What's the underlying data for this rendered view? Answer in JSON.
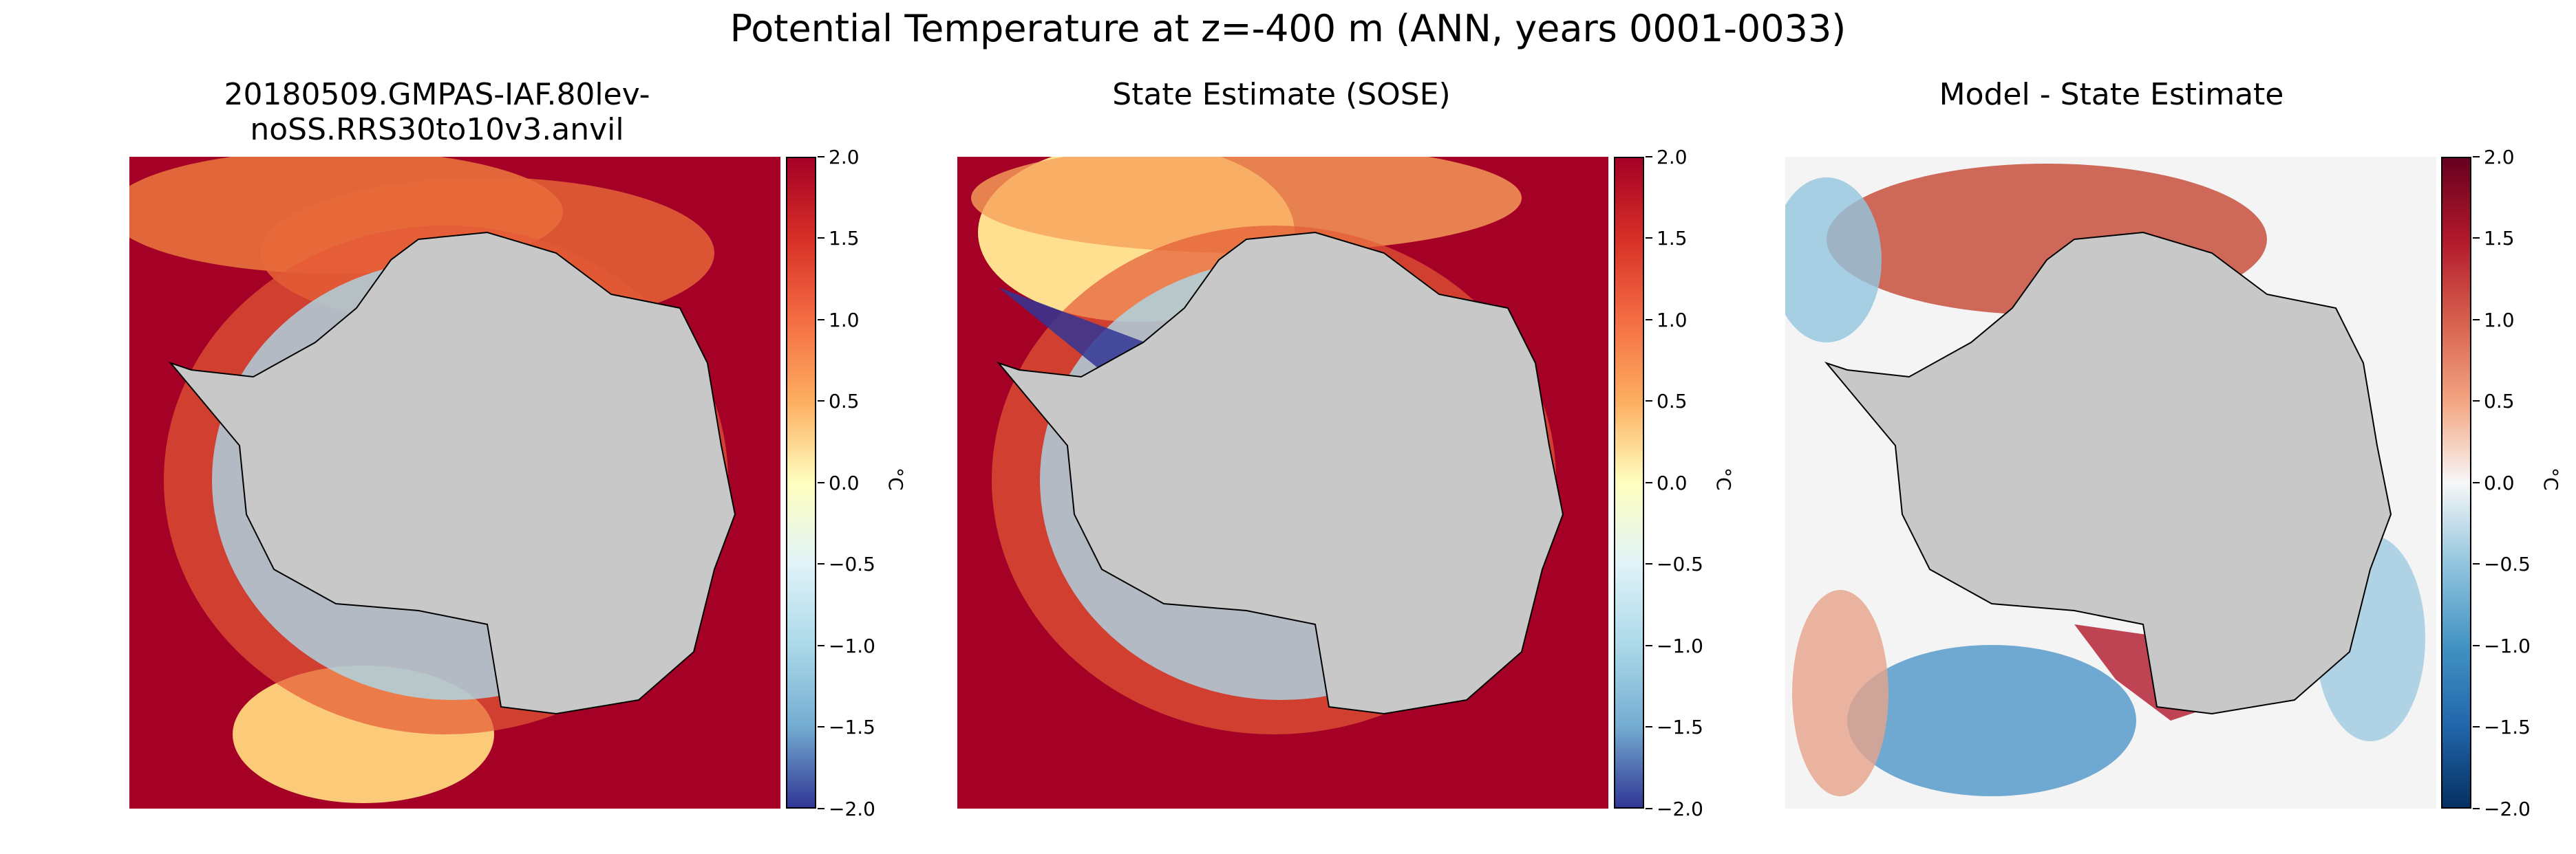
{
  "suptitle": "Potential Temperature at z=-400 m (ANN, years 0001-0033)",
  "panels": [
    {
      "title": "20180509.GMPAS-IAF.80lev-noSS.RRS30to10v3.anvil",
      "colormap": "RdYlBu_r"
    },
    {
      "title": "State Estimate (SOSE)",
      "colormap": "RdYlBu_r"
    },
    {
      "title": "Model - State Estimate",
      "colormap": "RdBu_r"
    }
  ],
  "colorbar": {
    "unit": "°C",
    "ticks": [
      "2.0",
      "1.5",
      "1.0",
      "0.5",
      "0.0",
      "−0.5",
      "−1.0",
      "−1.5",
      "−2.0"
    ]
  },
  "colors": {
    "land": "#c8c8c8",
    "warm": "#a50026",
    "cool": "#313695",
    "diff_warm": "#67001f",
    "diff_cool": "#053061"
  },
  "icons": {
    "land": "antarctica-landmass"
  }
}
